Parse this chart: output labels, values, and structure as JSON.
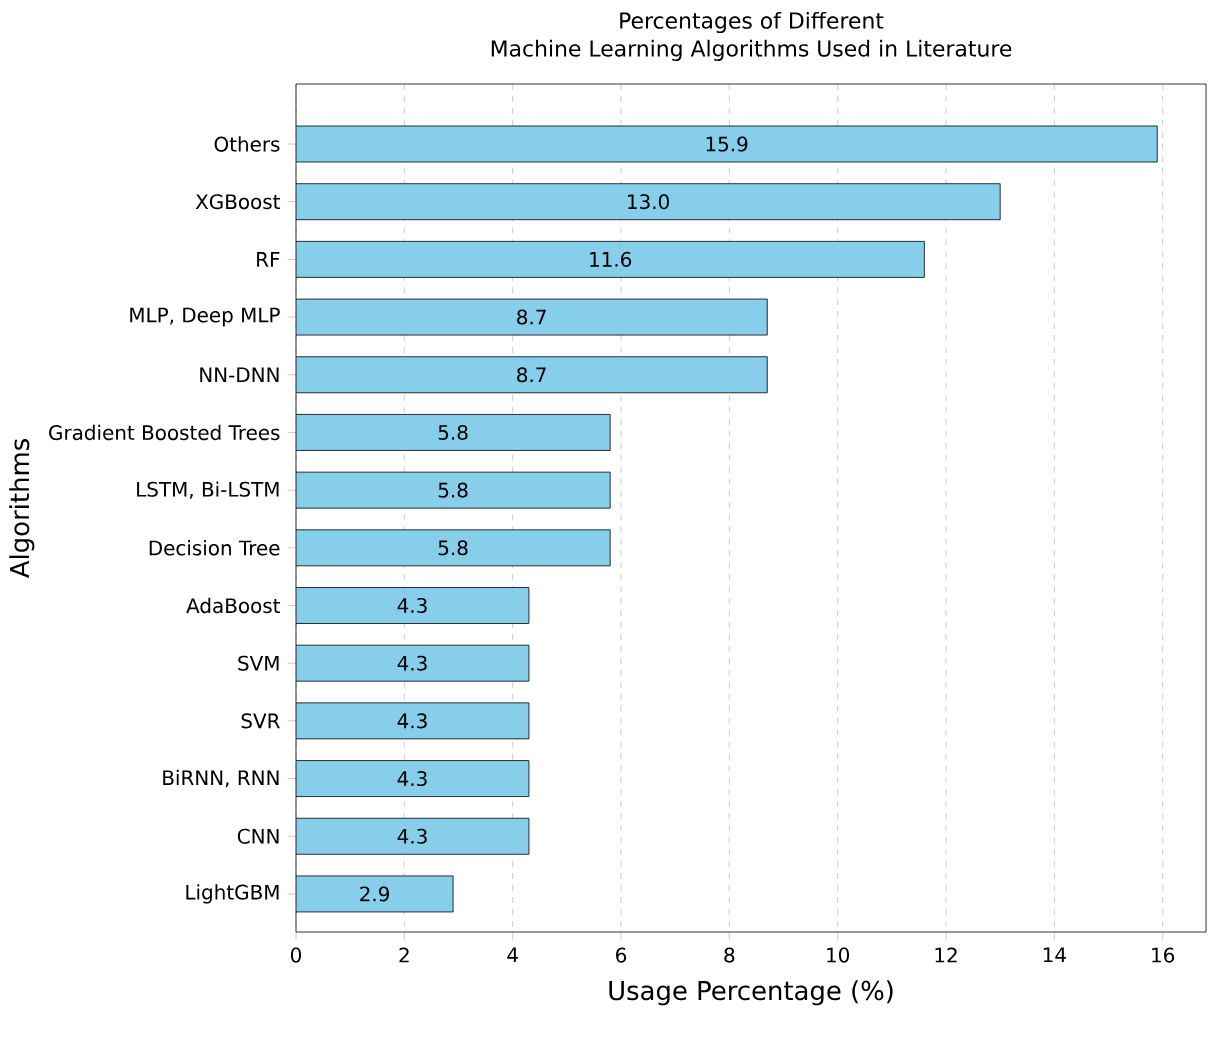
{
  "chart_data": {
    "type": "bar",
    "orientation": "horizontal",
    "title": "Percentages of Different\nMachine Learning Algorithms Used in Literature",
    "xlabel": "Usage Percentage (%)",
    "ylabel": "Algorithms",
    "categories": [
      "Others",
      "XGBoost",
      "RF",
      "MLP, Deep MLP",
      "NN-DNN",
      "Gradient Boosted Trees",
      "LSTM, Bi-LSTM",
      "Decision Tree",
      "AdaBoost",
      "SVM",
      "SVR",
      "BiRNN, RNN",
      "CNN",
      "LightGBM"
    ],
    "values": [
      15.9,
      13.0,
      11.6,
      8.7,
      8.7,
      5.8,
      5.8,
      5.8,
      4.3,
      4.3,
      4.3,
      4.3,
      4.3,
      2.9
    ],
    "color": "#87ceeb",
    "xlim": [
      0,
      16.8
    ],
    "xticks": [
      0,
      2,
      4,
      6,
      8,
      10,
      12,
      14,
      16
    ],
    "value_labels": [
      "15.9",
      "13.0",
      "11.6",
      "8.7",
      "8.7",
      "5.8",
      "5.8",
      "5.8",
      "4.3",
      "4.3",
      "4.3",
      "4.3",
      "4.3",
      "2.9"
    ],
    "grid": "x"
  }
}
